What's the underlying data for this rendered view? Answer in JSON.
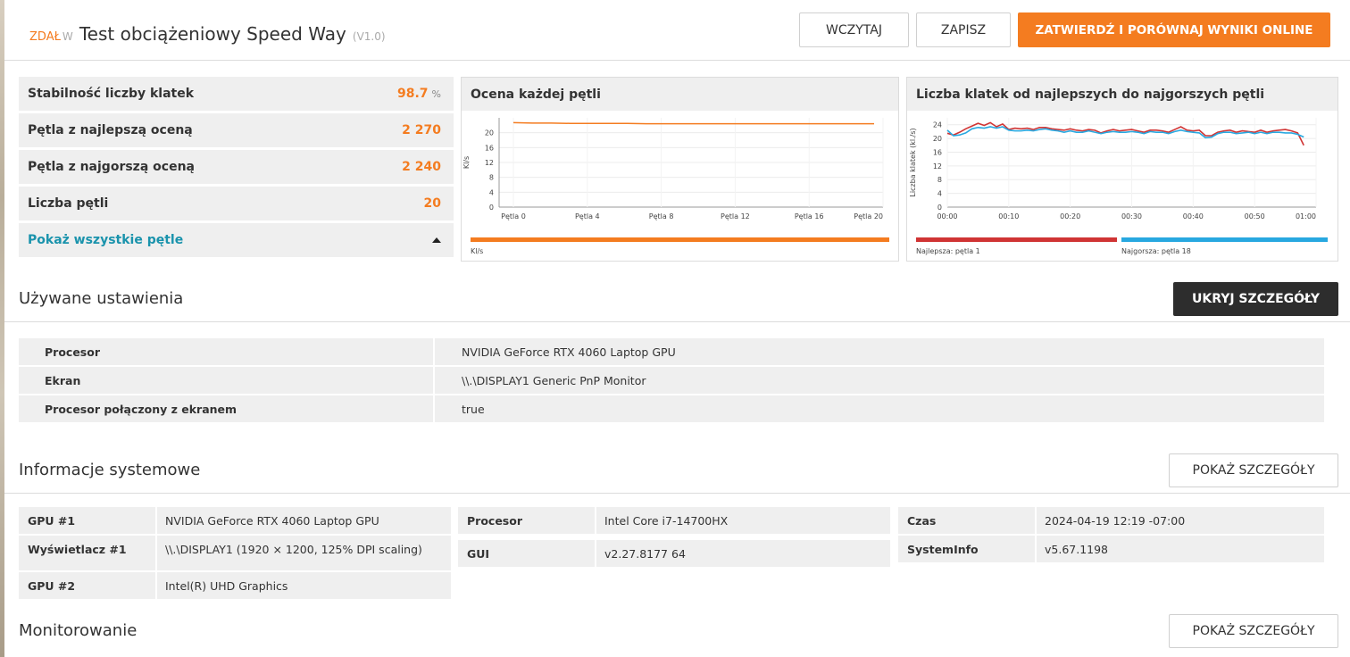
{
  "header": {
    "status": "ZDAŁ",
    "status_w": "W",
    "title": "Test obciążeniowy Speed Way",
    "version": "(V1.0)",
    "load_label": "WCZYTAJ",
    "save_label": "ZAPISZ",
    "submit_label": "ZATWIERDŹ I PORÓWNAJ WYNIKI ONLINE"
  },
  "stats": {
    "rows": [
      {
        "label": "Stabilność liczby klatek",
        "value": "98.7",
        "unit": "%"
      },
      {
        "label": "Pętla z najlepszą oceną",
        "value": "2 270"
      },
      {
        "label": "Pętla z najgorszą oceną",
        "value": "2 240"
      },
      {
        "label": "Liczba pętli",
        "value": "20"
      }
    ],
    "show_all": "Pokaż wszystkie pętle"
  },
  "colors": {
    "accent": "#f47c20",
    "best": "#d03434",
    "worst": "#28a8e0",
    "link": "#1a93ac"
  },
  "chart_data": [
    {
      "type": "line",
      "title": "Ocena każdej pętli",
      "ylabel": "Kl/s",
      "ylim": [
        0,
        24
      ],
      "yticks": [
        0,
        4,
        8,
        12,
        16,
        20
      ],
      "xticks": [
        "Pętla 0",
        "Pętla 4",
        "Pętla 8",
        "Pętla 12",
        "Pętla 16",
        "Pętla 20"
      ],
      "x": [
        1,
        2,
        3,
        4,
        5,
        6,
        7,
        8,
        9,
        10,
        11,
        12,
        13,
        14,
        15,
        16,
        17,
        18,
        19,
        20
      ],
      "series": [
        {
          "values": [
            22.7,
            22.6,
            22.6,
            22.5,
            22.5,
            22.5,
            22.5,
            22.4,
            22.4,
            22.4,
            22.4,
            22.4,
            22.4,
            22.4,
            22.4,
            22.4,
            22.4,
            22.4,
            22.4,
            22.4
          ]
        }
      ],
      "legend": "Kl/s"
    },
    {
      "type": "line",
      "title": "Liczba klatek od najlepszych do najgorszych pętli",
      "ylabel": "Liczba klatek (kl./s)",
      "ylim": [
        0,
        26
      ],
      "yticks": [
        0,
        4,
        8,
        12,
        16,
        20,
        24
      ],
      "xticks": [
        "00:00",
        "00:10",
        "00:20",
        "00:30",
        "00:40",
        "00:50",
        "01:00"
      ],
      "xlim": [
        0,
        60
      ],
      "series": [
        {
          "name": "Najlepsza: pętla 1",
          "x": [
            0,
            1,
            2,
            3,
            4,
            5,
            6,
            7,
            8,
            9,
            10,
            11,
            12,
            13,
            14,
            15,
            16,
            17,
            18,
            19,
            20,
            21,
            22,
            23,
            24,
            25,
            26,
            27,
            28,
            29,
            30,
            31,
            32,
            33,
            34,
            35,
            36,
            37,
            38,
            39,
            40,
            41,
            42,
            43,
            44,
            45,
            46,
            47,
            48,
            49,
            50,
            51,
            52,
            53,
            54,
            55,
            56,
            57,
            58
          ],
          "values": [
            21.5,
            21,
            21.8,
            22.8,
            23.6,
            24.4,
            23.8,
            24.6,
            23.4,
            24.2,
            22.6,
            23,
            22.8,
            23,
            22.6,
            23.2,
            23.2,
            22.8,
            22.6,
            22.4,
            22.8,
            22.4,
            22.2,
            22.6,
            22.4,
            21.6,
            22.2,
            22.6,
            22.2,
            22.4,
            22.6,
            22.2,
            21.8,
            22.4,
            22.4,
            22.2,
            21.8,
            22.6,
            23.4,
            22.4,
            22.2,
            22.4,
            20.8,
            20.8,
            21.8,
            22.2,
            22.4,
            21.8,
            22.2,
            22,
            21.8,
            22.4,
            21.8,
            22.2,
            22.4,
            22.6,
            22.2,
            21.6,
            18
          ]
        },
        {
          "name": "Najgorsza: pętla 18",
          "x": [
            0,
            1,
            2,
            3,
            4,
            5,
            6,
            7,
            8,
            9,
            10,
            11,
            12,
            13,
            14,
            15,
            16,
            17,
            18,
            19,
            20,
            21,
            22,
            23,
            24,
            25,
            26,
            27,
            28,
            29,
            30,
            31,
            32,
            33,
            34,
            35,
            36,
            37,
            38,
            39,
            40,
            41,
            42,
            43,
            44,
            45,
            46,
            47,
            48,
            49,
            50,
            51,
            52,
            53,
            54,
            55,
            56,
            57,
            58
          ],
          "values": [
            22.4,
            20.8,
            21,
            21.6,
            22.8,
            23.2,
            23,
            23.4,
            23,
            23.4,
            22.4,
            22.2,
            22.2,
            22.4,
            22.2,
            22.6,
            22.8,
            22.4,
            22.2,
            21.8,
            22.2,
            21.8,
            21.8,
            22.2,
            21.8,
            21.4,
            21.8,
            22,
            21.8,
            21.8,
            22,
            21.8,
            21.4,
            22,
            21.8,
            21.8,
            21.4,
            22,
            22.4,
            22,
            21.8,
            21.6,
            20.2,
            20.4,
            21.4,
            21.8,
            21.8,
            21.4,
            21.6,
            21.8,
            21.4,
            21.8,
            21.4,
            21.8,
            21.8,
            21.6,
            21.6,
            21.2,
            20.4
          ]
        }
      ]
    }
  ],
  "settings": {
    "title": "Używane ustawienia",
    "hide_label": "UKRYJ SZCZEGÓŁY",
    "rows": [
      {
        "key": "Procesor",
        "value": "NVIDIA GeForce RTX 4060 Laptop GPU"
      },
      {
        "key": "Ekran",
        "value": "\\\\.\\DISPLAY1 Generic PnP Monitor"
      },
      {
        "key": "Procesor połączony z ekranem",
        "value": "true"
      }
    ]
  },
  "system": {
    "title": "Informacje systemowe",
    "show_label": "POKAŻ SZCZEGÓŁY",
    "col1": [
      {
        "key": "GPU #1",
        "value": "NVIDIA GeForce RTX 4060 Laptop GPU"
      },
      {
        "key": "Wyświetlacz #1",
        "value": "\\\\.\\DISPLAY1 (1920 × 1200, 125% DPI scaling)"
      },
      {
        "key": "GPU #2",
        "value": "Intel(R) UHD Graphics"
      }
    ],
    "col2": [
      {
        "key": "Procesor",
        "value": "Intel Core i7-14700HX"
      },
      {
        "key": "GUI",
        "value": "v2.27.8177 64"
      }
    ],
    "col3": [
      {
        "key": "Czas",
        "value": "2024-04-19 12:19 -07:00"
      },
      {
        "key": "SystemInfo",
        "value": "v5.67.1198"
      }
    ]
  },
  "monitoring": {
    "title": "Monitorowanie",
    "show_label": "POKAŻ SZCZEGÓŁY"
  }
}
